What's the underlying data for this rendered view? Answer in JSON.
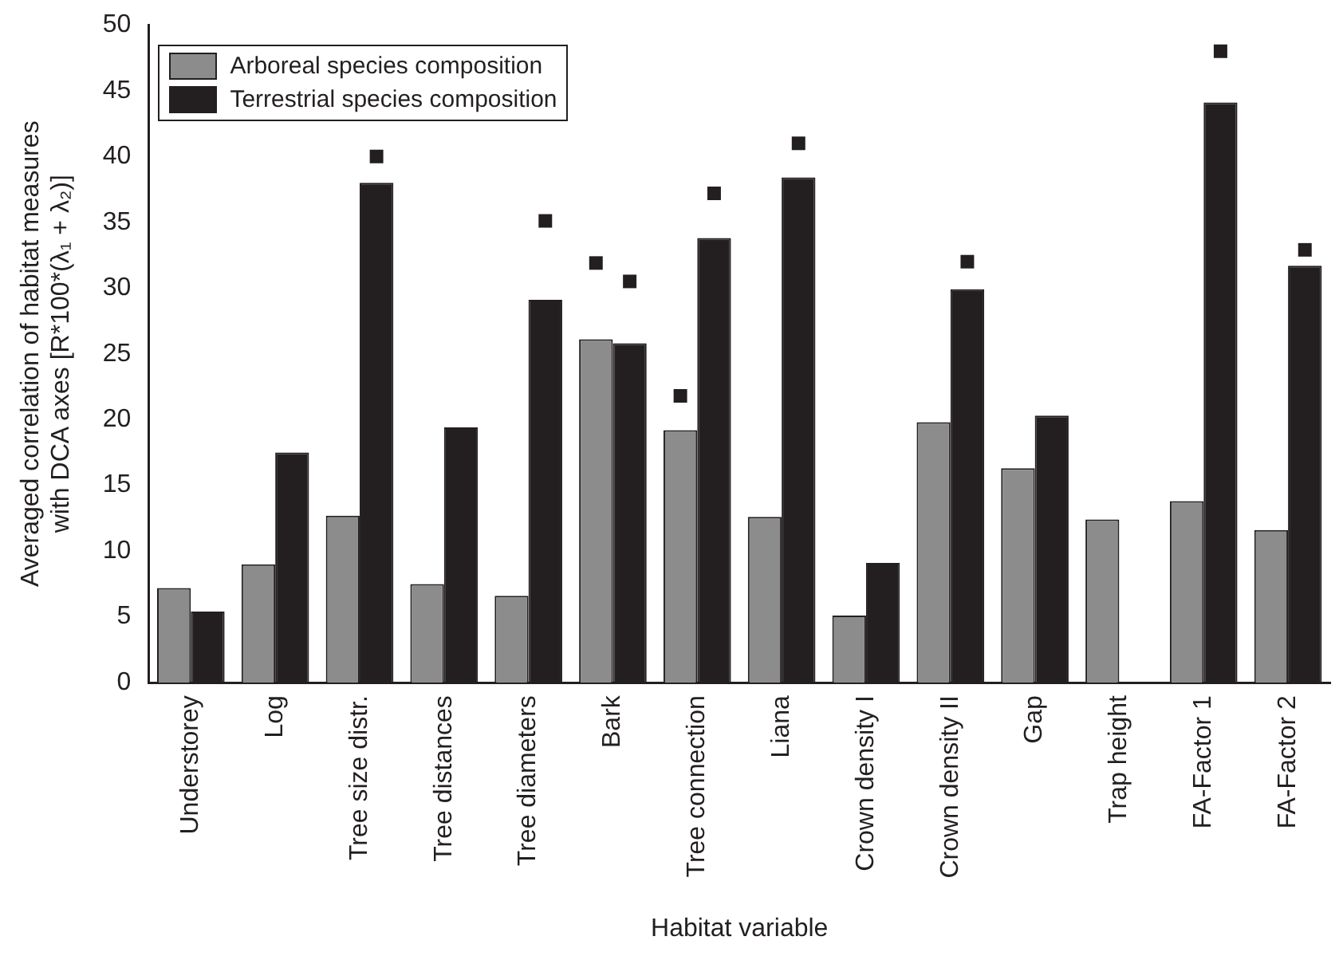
{
  "chart_data": {
    "type": "bar",
    "xlabel": "Habitat variable",
    "ylabel": "Averaged correlation of habitat measures\nwith DCA axes [R*100*(λ₁ + λ₂)]",
    "categories": [
      "Understorey",
      "Log",
      "Tree size distr.",
      "Tree distances",
      "Tree diameters",
      "Bark",
      "Tree connection",
      "Liana",
      "Crown density I",
      "Crown density II",
      "Gap",
      "Trap height",
      "FA-Factor 1",
      "FA-Factor 2"
    ],
    "series": [
      {
        "name": "Arboreal species composition",
        "color": "#8c8c8c",
        "values": [
          7.2,
          9,
          12.7,
          7.5,
          6.6,
          26.1,
          19.2,
          12.6,
          5.1,
          19.8,
          16.3,
          12.4,
          13.8,
          11.6
        ]
      },
      {
        "name": "Terrestrial species composition",
        "color": "#231f20",
        "values": [
          5.4,
          17.5,
          38,
          19.4,
          29.1,
          25.8,
          33.8,
          38.4,
          9.1,
          29.9,
          20.3,
          null,
          44.1,
          31.7
        ]
      },
      {
        "type": "scatter",
        "color": "#231f20",
        "x": [
          "Bark",
          "Tree connection"
        ],
        "values": [
          31.9,
          21.8
        ]
      },
      {
        "type": "scatter",
        "color": "#231f20",
        "x": [
          "Tree size distr.",
          "Tree diameters",
          "Bark",
          "Tree connection",
          "Liana",
          "Crown density II",
          "FA-Factor 1",
          "FA-Factor 2"
        ],
        "values": [
          40,
          35.1,
          30.5,
          37.2,
          41,
          32,
          48,
          32.9
        ]
      }
    ],
    "ylim": [
      0,
      50
    ],
    "yticks": [
      0,
      5,
      10,
      15,
      20,
      25,
      30,
      35,
      40,
      45,
      50
    ],
    "grid": false,
    "legend": "top left",
    "marker": "square"
  }
}
